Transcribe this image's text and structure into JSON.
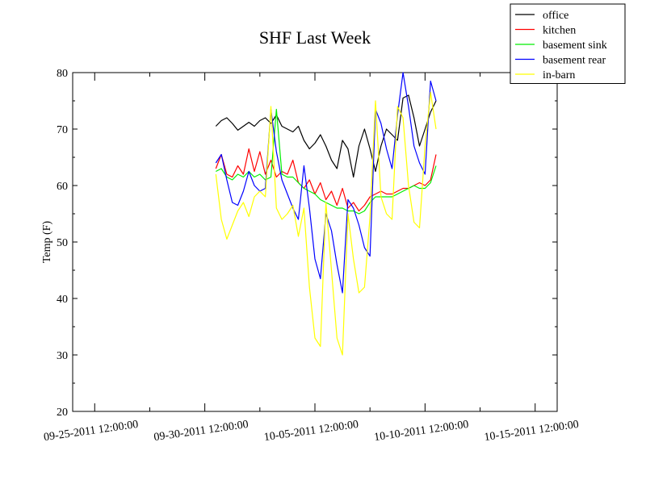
{
  "chart_data": {
    "type": "line",
    "title": "SHF Last Week",
    "xlabel": "",
    "ylabel": "Temp (F)",
    "ylim": [
      20,
      80
    ],
    "yticks": [
      20,
      30,
      40,
      50,
      60,
      70,
      80
    ],
    "xlim": [
      "2011-09-24T12:00:00",
      "2011-10-16T12:00:00"
    ],
    "xticks": [
      {
        "x": "2011-09-25T12:00:00",
        "label": "09-25-2011 12:00:00"
      },
      {
        "x": "2011-09-30T12:00:00",
        "label": "09-30-2011 12:00:00"
      },
      {
        "x": "2011-10-05T12:00:00",
        "label": "10-05-2011 12:00:00"
      },
      {
        "x": "2011-10-10T12:00:00",
        "label": "10-10-2011 12:00:00"
      },
      {
        "x": "2011-10-15T12:00:00",
        "label": "10-15-2011 12:00:00"
      }
    ],
    "grid": false,
    "legend_position": "top-right",
    "series": [
      {
        "name": "office",
        "color": "#000000",
        "points": [
          [
            "2011-10-01T00:00:00",
            70.5
          ],
          [
            "2011-10-01T06:00:00",
            71.5
          ],
          [
            "2011-10-01T12:00:00",
            72.0
          ],
          [
            "2011-10-01T18:00:00",
            71.0
          ],
          [
            "2011-10-02T00:00:00",
            69.8
          ],
          [
            "2011-10-02T06:00:00",
            70.5
          ],
          [
            "2011-10-02T12:00:00",
            71.2
          ],
          [
            "2011-10-02T18:00:00",
            70.5
          ],
          [
            "2011-10-03T00:00:00",
            71.5
          ],
          [
            "2011-10-03T06:00:00",
            72.0
          ],
          [
            "2011-10-03T12:00:00",
            71.0
          ],
          [
            "2011-10-03T18:00:00",
            72.5
          ],
          [
            "2011-10-04T00:00:00",
            70.5
          ],
          [
            "2011-10-04T06:00:00",
            70.0
          ],
          [
            "2011-10-04T12:00:00",
            69.5
          ],
          [
            "2011-10-04T18:00:00",
            70.5
          ],
          [
            "2011-10-05T00:00:00",
            68.0
          ],
          [
            "2011-10-05T06:00:00",
            66.5
          ],
          [
            "2011-10-05T12:00:00",
            67.5
          ],
          [
            "2011-10-05T18:00:00",
            69.0
          ],
          [
            "2011-10-06T00:00:00",
            67.0
          ],
          [
            "2011-10-06T06:00:00",
            64.5
          ],
          [
            "2011-10-06T12:00:00",
            63.0
          ],
          [
            "2011-10-06T18:00:00",
            68.0
          ],
          [
            "2011-10-07T00:00:00",
            66.5
          ],
          [
            "2011-10-07T06:00:00",
            61.5
          ],
          [
            "2011-10-07T12:00:00",
            67.0
          ],
          [
            "2011-10-07T18:00:00",
            70.0
          ],
          [
            "2011-10-08T00:00:00",
            66.5
          ],
          [
            "2011-10-08T06:00:00",
            62.5
          ],
          [
            "2011-10-08T12:00:00",
            67.0
          ],
          [
            "2011-10-08T18:00:00",
            70.0
          ],
          [
            "2011-10-09T00:00:00",
            69.0
          ],
          [
            "2011-10-09T06:00:00",
            68.0
          ],
          [
            "2011-10-09T12:00:00",
            75.5
          ],
          [
            "2011-10-09T18:00:00",
            76.0
          ],
          [
            "2011-10-10T00:00:00",
            72.0
          ],
          [
            "2011-10-10T06:00:00",
            67.0
          ],
          [
            "2011-10-10T12:00:00",
            70.0
          ],
          [
            "2011-10-10T18:00:00",
            73.0
          ],
          [
            "2011-10-11T00:00:00",
            75.0
          ]
        ]
      },
      {
        "name": "kitchen",
        "color": "#ff0000",
        "points": [
          [
            "2011-10-01T00:00:00",
            63.0
          ],
          [
            "2011-10-01T06:00:00",
            65.5
          ],
          [
            "2011-10-01T12:00:00",
            62.0
          ],
          [
            "2011-10-01T18:00:00",
            61.5
          ],
          [
            "2011-10-02T00:00:00",
            63.5
          ],
          [
            "2011-10-02T06:00:00",
            62.0
          ],
          [
            "2011-10-02T12:00:00",
            66.5
          ],
          [
            "2011-10-02T18:00:00",
            62.5
          ],
          [
            "2011-10-03T00:00:00",
            66.0
          ],
          [
            "2011-10-03T06:00:00",
            62.0
          ],
          [
            "2011-10-03T12:00:00",
            64.5
          ],
          [
            "2011-10-03T18:00:00",
            61.5
          ],
          [
            "2011-10-04T00:00:00",
            62.5
          ],
          [
            "2011-10-04T06:00:00",
            62.0
          ],
          [
            "2011-10-04T12:00:00",
            64.5
          ],
          [
            "2011-10-04T18:00:00",
            60.5
          ],
          [
            "2011-10-05T00:00:00",
            59.5
          ],
          [
            "2011-10-05T06:00:00",
            61.0
          ],
          [
            "2011-10-05T12:00:00",
            58.5
          ],
          [
            "2011-10-05T18:00:00",
            60.5
          ],
          [
            "2011-10-06T00:00:00",
            57.5
          ],
          [
            "2011-10-06T06:00:00",
            59.0
          ],
          [
            "2011-10-06T12:00:00",
            56.5
          ],
          [
            "2011-10-06T18:00:00",
            59.5
          ],
          [
            "2011-10-07T00:00:00",
            56.0
          ],
          [
            "2011-10-07T06:00:00",
            57.0
          ],
          [
            "2011-10-07T12:00:00",
            55.5
          ],
          [
            "2011-10-07T18:00:00",
            56.5
          ],
          [
            "2011-10-08T00:00:00",
            58.0
          ],
          [
            "2011-10-08T06:00:00",
            58.5
          ],
          [
            "2011-10-08T12:00:00",
            59.0
          ],
          [
            "2011-10-08T18:00:00",
            58.5
          ],
          [
            "2011-10-09T00:00:00",
            58.5
          ],
          [
            "2011-10-09T06:00:00",
            59.0
          ],
          [
            "2011-10-09T12:00:00",
            59.5
          ],
          [
            "2011-10-09T18:00:00",
            59.5
          ],
          [
            "2011-10-10T00:00:00",
            60.0
          ],
          [
            "2011-10-10T06:00:00",
            60.5
          ],
          [
            "2011-10-10T12:00:00",
            60.0
          ],
          [
            "2011-10-10T18:00:00",
            61.0
          ],
          [
            "2011-10-11T00:00:00",
            65.5
          ]
        ]
      },
      {
        "name": "basement sink",
        "color": "#00ee00",
        "points": [
          [
            "2011-10-01T00:00:00",
            62.5
          ],
          [
            "2011-10-01T06:00:00",
            63.0
          ],
          [
            "2011-10-01T12:00:00",
            61.5
          ],
          [
            "2011-10-01T18:00:00",
            61.0
          ],
          [
            "2011-10-02T00:00:00",
            62.0
          ],
          [
            "2011-10-02T06:00:00",
            61.5
          ],
          [
            "2011-10-02T12:00:00",
            62.5
          ],
          [
            "2011-10-02T18:00:00",
            61.5
          ],
          [
            "2011-10-03T00:00:00",
            62.0
          ],
          [
            "2011-10-03T06:00:00",
            61.0
          ],
          [
            "2011-10-03T12:00:00",
            61.5
          ],
          [
            "2011-10-03T18:00:00",
            73.5
          ],
          [
            "2011-10-04T00:00:00",
            62.0
          ],
          [
            "2011-10-04T06:00:00",
            61.5
          ],
          [
            "2011-10-04T12:00:00",
            61.5
          ],
          [
            "2011-10-04T18:00:00",
            60.5
          ],
          [
            "2011-10-05T00:00:00",
            59.5
          ],
          [
            "2011-10-05T06:00:00",
            59.0
          ],
          [
            "2011-10-05T12:00:00",
            58.5
          ],
          [
            "2011-10-05T18:00:00",
            57.5
          ],
          [
            "2011-10-06T00:00:00",
            57.0
          ],
          [
            "2011-10-06T06:00:00",
            56.5
          ],
          [
            "2011-10-06T12:00:00",
            56.0
          ],
          [
            "2011-10-06T18:00:00",
            56.0
          ],
          [
            "2011-10-07T00:00:00",
            55.5
          ],
          [
            "2011-10-07T06:00:00",
            55.5
          ],
          [
            "2011-10-07T12:00:00",
            55.0
          ],
          [
            "2011-10-07T18:00:00",
            55.5
          ],
          [
            "2011-10-08T00:00:00",
            57.0
          ],
          [
            "2011-10-08T06:00:00",
            58.0
          ],
          [
            "2011-10-08T12:00:00",
            58.0
          ],
          [
            "2011-10-08T18:00:00",
            58.0
          ],
          [
            "2011-10-09T00:00:00",
            58.0
          ],
          [
            "2011-10-09T06:00:00",
            58.5
          ],
          [
            "2011-10-09T12:00:00",
            59.0
          ],
          [
            "2011-10-09T18:00:00",
            59.5
          ],
          [
            "2011-10-10T00:00:00",
            60.0
          ],
          [
            "2011-10-10T06:00:00",
            59.5
          ],
          [
            "2011-10-10T12:00:00",
            59.5
          ],
          [
            "2011-10-10T18:00:00",
            60.5
          ],
          [
            "2011-10-11T00:00:00",
            63.5
          ]
        ]
      },
      {
        "name": "basement rear",
        "color": "#0000ff",
        "points": [
          [
            "2011-10-01T00:00:00",
            64.0
          ],
          [
            "2011-10-01T06:00:00",
            65.5
          ],
          [
            "2011-10-01T12:00:00",
            61.0
          ],
          [
            "2011-10-01T18:00:00",
            57.0
          ],
          [
            "2011-10-02T00:00:00",
            56.5
          ],
          [
            "2011-10-02T06:00:00",
            59.0
          ],
          [
            "2011-10-02T12:00:00",
            62.5
          ],
          [
            "2011-10-02T18:00:00",
            60.0
          ],
          [
            "2011-10-03T00:00:00",
            59.0
          ],
          [
            "2011-10-03T06:00:00",
            59.5
          ],
          [
            "2011-10-03T12:00:00",
            73.5
          ],
          [
            "2011-10-03T18:00:00",
            66.0
          ],
          [
            "2011-10-04T00:00:00",
            61.0
          ],
          [
            "2011-10-04T06:00:00",
            58.5
          ],
          [
            "2011-10-04T12:00:00",
            56.0
          ],
          [
            "2011-10-04T18:00:00",
            54.0
          ],
          [
            "2011-10-05T00:00:00",
            63.5
          ],
          [
            "2011-10-05T06:00:00",
            56.0
          ],
          [
            "2011-10-05T12:00:00",
            47.0
          ],
          [
            "2011-10-05T18:00:00",
            43.5
          ],
          [
            "2011-10-06T00:00:00",
            55.0
          ],
          [
            "2011-10-06T06:00:00",
            52.0
          ],
          [
            "2011-10-06T12:00:00",
            46.0
          ],
          [
            "2011-10-06T18:00:00",
            41.0
          ],
          [
            "2011-10-07T00:00:00",
            57.5
          ],
          [
            "2011-10-07T06:00:00",
            56.0
          ],
          [
            "2011-10-07T12:00:00",
            53.0
          ],
          [
            "2011-10-07T18:00:00",
            49.0
          ],
          [
            "2011-10-08T00:00:00",
            47.5
          ],
          [
            "2011-10-08T06:00:00",
            73.5
          ],
          [
            "2011-10-08T12:00:00",
            71.0
          ],
          [
            "2011-10-08T18:00:00",
            66.5
          ],
          [
            "2011-10-09T00:00:00",
            63.0
          ],
          [
            "2011-10-09T06:00:00",
            72.5
          ],
          [
            "2011-10-09T12:00:00",
            80.0
          ],
          [
            "2011-10-09T18:00:00",
            74.0
          ],
          [
            "2011-10-10T00:00:00",
            67.0
          ],
          [
            "2011-10-10T06:00:00",
            64.0
          ],
          [
            "2011-10-10T12:00:00",
            62.0
          ],
          [
            "2011-10-10T18:00:00",
            78.5
          ],
          [
            "2011-10-11T00:00:00",
            75.0
          ]
        ]
      },
      {
        "name": "in-barn",
        "color": "#ffff00",
        "points": [
          [
            "2011-10-01T00:00:00",
            62.0
          ],
          [
            "2011-10-01T06:00:00",
            54.0
          ],
          [
            "2011-10-01T12:00:00",
            50.5
          ],
          [
            "2011-10-01T18:00:00",
            53.0
          ],
          [
            "2011-10-02T00:00:00",
            55.5
          ],
          [
            "2011-10-02T06:00:00",
            57.0
          ],
          [
            "2011-10-02T12:00:00",
            54.5
          ],
          [
            "2011-10-02T18:00:00",
            58.0
          ],
          [
            "2011-10-03T00:00:00",
            59.0
          ],
          [
            "2011-10-03T06:00:00",
            58.0
          ],
          [
            "2011-10-03T12:00:00",
            74.0
          ],
          [
            "2011-10-03T18:00:00",
            56.0
          ],
          [
            "2011-10-04T00:00:00",
            54.0
          ],
          [
            "2011-10-04T06:00:00",
            55.0
          ],
          [
            "2011-10-04T12:00:00",
            56.5
          ],
          [
            "2011-10-04T18:00:00",
            51.0
          ],
          [
            "2011-10-05T00:00:00",
            56.0
          ],
          [
            "2011-10-05T06:00:00",
            42.0
          ],
          [
            "2011-10-05T12:00:00",
            33.0
          ],
          [
            "2011-10-05T18:00:00",
            31.5
          ],
          [
            "2011-10-06T00:00:00",
            57.0
          ],
          [
            "2011-10-06T06:00:00",
            45.0
          ],
          [
            "2011-10-06T12:00:00",
            33.0
          ],
          [
            "2011-10-06T18:00:00",
            30.0
          ],
          [
            "2011-10-07T00:00:00",
            55.0
          ],
          [
            "2011-10-07T06:00:00",
            47.0
          ],
          [
            "2011-10-07T12:00:00",
            41.0
          ],
          [
            "2011-10-07T18:00:00",
            42.0
          ],
          [
            "2011-10-08T00:00:00",
            54.5
          ],
          [
            "2011-10-08T06:00:00",
            75.0
          ],
          [
            "2011-10-08T12:00:00",
            58.0
          ],
          [
            "2011-10-08T18:00:00",
            55.0
          ],
          [
            "2011-10-09T00:00:00",
            54.0
          ],
          [
            "2011-10-09T06:00:00",
            74.0
          ],
          [
            "2011-10-09T12:00:00",
            72.0
          ],
          [
            "2011-10-09T18:00:00",
            60.0
          ],
          [
            "2011-10-10T00:00:00",
            53.5
          ],
          [
            "2011-10-10T06:00:00",
            52.5
          ],
          [
            "2011-10-10T12:00:00",
            67.0
          ],
          [
            "2011-10-10T18:00:00",
            76.5
          ],
          [
            "2011-10-11T00:00:00",
            70.0
          ]
        ]
      }
    ]
  }
}
